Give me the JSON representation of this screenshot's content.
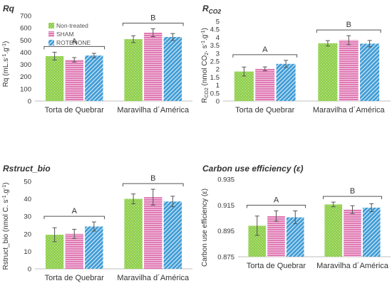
{
  "colors": {
    "non_treated": "#92d050",
    "sham": "#e07ab4",
    "rotenone": "#3d9bd6",
    "axis": "#555555",
    "grid": "#d9d9d9",
    "text": "#333333"
  },
  "chart_data": [
    {
      "type": "bar",
      "title": "Rq",
      "title_style": "bold-italic",
      "ylabel": "Rq (mL.s-1.g-1)",
      "ylim": [
        0,
        700
      ],
      "yticks": [
        "0",
        "100",
        "200",
        "300",
        "400",
        "500",
        "600",
        "700"
      ],
      "categories": [
        "Torta de Quebrar",
        "Maravilha d´América"
      ],
      "series": [
        {
          "name": "Non-treated",
          "values": [
            368,
            507
          ],
          "errors": [
            32,
            28
          ]
        },
        {
          "name": "SHAM",
          "values": [
            338,
            560
          ],
          "errors": [
            18,
            32
          ]
        },
        {
          "name": "ROTENONE",
          "values": [
            373,
            525
          ],
          "errors": [
            18,
            28
          ]
        }
      ],
      "group_letters": [
        "A",
        "B"
      ],
      "legend": "top-left",
      "grid": false
    },
    {
      "type": "bar",
      "title": "RCO2",
      "title_style": "bold-italic",
      "ylabel": "RCO2 (nmol CO2. s-1.g-1)",
      "ylim": [
        0,
        5
      ],
      "yticks": [
        "0",
        "0.5",
        "1",
        "1.5",
        "2",
        "2.5",
        "3",
        "3.5",
        "4",
        "4.5",
        "5"
      ],
      "categories": [
        "Torta de Quebrar",
        "Maravilha d´América"
      ],
      "series": [
        {
          "name": "Non-treated",
          "values": [
            1.85,
            3.62
          ],
          "errors": [
            0.28,
            0.17
          ]
        },
        {
          "name": "SHAM",
          "values": [
            2.02,
            3.82
          ],
          "errors": [
            0.12,
            0.28
          ]
        },
        {
          "name": "ROTENONE",
          "values": [
            2.33,
            3.6
          ],
          "errors": [
            0.22,
            0.2
          ]
        }
      ],
      "group_letters": [
        "A",
        "B"
      ],
      "grid": false
    },
    {
      "type": "bar",
      "title": "Rstruct_bio",
      "title_style": "bold-italic",
      "ylabel": "Rstruct_bio (nmol C. s-1.g-1)",
      "ylim": [
        0,
        50
      ],
      "yticks": [
        "0",
        "10",
        "20",
        "30",
        "40",
        "50"
      ],
      "categories": [
        "Torta de Quebrar",
        "Maravilha d´América"
      ],
      "series": [
        {
          "name": "Non-treated",
          "values": [
            19.5,
            40.0
          ],
          "errors": [
            4.0,
            2.8
          ]
        },
        {
          "name": "SHAM",
          "values": [
            20.0,
            41.0
          ],
          "errors": [
            2.6,
            4.5
          ]
        },
        {
          "name": "ROTENONE",
          "values": [
            24.2,
            38.5
          ],
          "errors": [
            2.6,
            3.0
          ]
        }
      ],
      "group_letters": [
        "A",
        "B"
      ],
      "grid": false
    },
    {
      "type": "bar",
      "title": "Carbon use efficiency (ε)",
      "title_style": "bold-italic",
      "ylabel": "Carbon use efficiency (ε)",
      "ylim": [
        0.875,
        0.935
      ],
      "yticks": [
        "0.875",
        "0.895",
        "0.915",
        "0.935"
      ],
      "categories": [
        "Torta de Quebrar",
        "Maravilha d´América"
      ],
      "series": [
        {
          "name": "Non-treated",
          "values": [
            0.899,
            0.9155
          ],
          "errors": [
            0.0075,
            0.0018
          ]
        },
        {
          "name": "SHAM",
          "values": [
            0.9065,
            0.9115
          ],
          "errors": [
            0.004,
            0.003
          ]
        },
        {
          "name": "ROTENONE",
          "values": [
            0.9055,
            0.913
          ],
          "errors": [
            0.005,
            0.003
          ]
        }
      ],
      "group_letters": [
        "A",
        "B"
      ],
      "grid": false
    }
  ]
}
